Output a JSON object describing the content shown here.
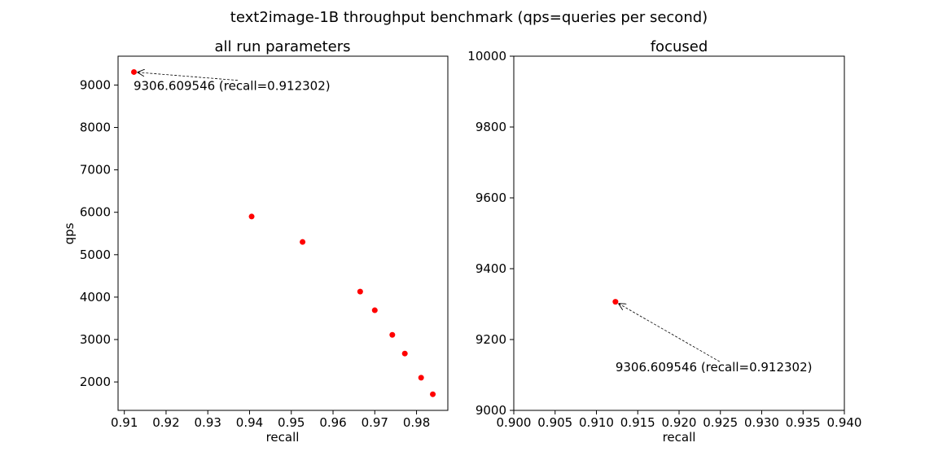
{
  "figure": {
    "suptitle": "text2image-1B throughput benchmark (qps=queries per second)"
  },
  "chart_data": [
    {
      "type": "scatter",
      "title": "all run parameters",
      "xlabel": "recall",
      "ylabel": "qps",
      "xlim": [
        0.9085,
        0.9875
      ],
      "ylim": [
        1330,
        9680
      ],
      "xticks": [
        0.91,
        0.92,
        0.93,
        0.94,
        0.95,
        0.96,
        0.97,
        0.98
      ],
      "yticks": [
        2000,
        3000,
        4000,
        5000,
        6000,
        7000,
        8000,
        9000
      ],
      "xtick_labels": [
        "0.91",
        "0.92",
        "0.93",
        "0.94",
        "0.95",
        "0.96",
        "0.97",
        "0.98"
      ],
      "ytick_labels": [
        "2000",
        "3000",
        "4000",
        "5000",
        "6000",
        "7000",
        "8000",
        "9000"
      ],
      "point_color": "#ff0000",
      "points": [
        {
          "x": 0.912302,
          "y": 9306.609546
        },
        {
          "x": 0.9405,
          "y": 5900
        },
        {
          "x": 0.9527,
          "y": 5300
        },
        {
          "x": 0.9665,
          "y": 4130
        },
        {
          "x": 0.97,
          "y": 3690
        },
        {
          "x": 0.9742,
          "y": 3110
        },
        {
          "x": 0.9772,
          "y": 2670
        },
        {
          "x": 0.9811,
          "y": 2100
        },
        {
          "x": 0.9839,
          "y": 1710
        }
      ],
      "annotation": {
        "text": "9306.609546 (recall=0.912302)",
        "target": {
          "x": 0.912302,
          "y": 9306.609546
        },
        "text_pos": {
          "x": 0.9122,
          "y": 8880
        }
      },
      "grid": false
    },
    {
      "type": "scatter",
      "title": "focused",
      "xlabel": "recall",
      "ylabel": "",
      "xlim": [
        0.9,
        0.94
      ],
      "ylim": [
        9000,
        10000
      ],
      "xticks": [
        0.9,
        0.905,
        0.91,
        0.915,
        0.92,
        0.925,
        0.93,
        0.935,
        0.94
      ],
      "yticks": [
        9000,
        9200,
        9400,
        9600,
        9800,
        10000
      ],
      "xtick_labels": [
        "0.900",
        "0.905",
        "0.910",
        "0.915",
        "0.920",
        "0.925",
        "0.930",
        "0.935",
        "0.940"
      ],
      "ytick_labels": [
        "9000",
        "9200",
        "9400",
        "9600",
        "9800",
        "10000"
      ],
      "point_color": "#ff0000",
      "points": [
        {
          "x": 0.912302,
          "y": 9306.609546
        }
      ],
      "annotation": {
        "text": "9306.609546 (recall=0.912302)",
        "target": {
          "x": 0.912302,
          "y": 9306.609546
        },
        "text_pos": {
          "x": 0.9123,
          "y": 9110
        }
      },
      "grid": false
    }
  ]
}
